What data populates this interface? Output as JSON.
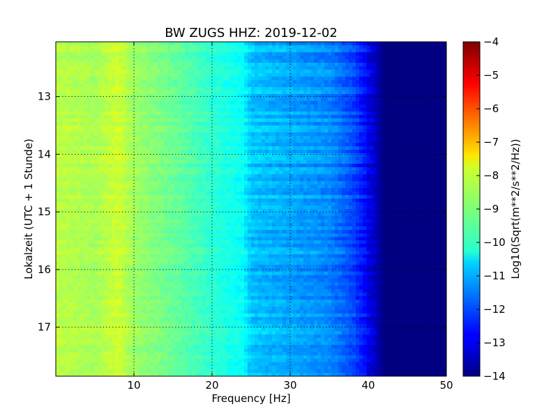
{
  "chart_data": {
    "type": "heatmap",
    "title": "BW ZUGS HHZ: 2019-12-02",
    "xlabel": "Frequency [Hz]",
    "ylabel": "Lokalzeit (UTC + 1 Stunde)",
    "xlim": [
      0,
      50
    ],
    "ylim": [
      12.05,
      17.85
    ],
    "x_ticks": [
      10,
      20,
      30,
      40,
      50
    ],
    "y_ticks": [
      13,
      14,
      15,
      16,
      17
    ],
    "grid": true,
    "colormap": "jet",
    "colorbar": {
      "label": "Log10(Sqrt(m**2/s**2/Hz))",
      "range": [
        -14,
        -4
      ],
      "ticks": [
        -4,
        -5,
        -6,
        -7,
        -8,
        -9,
        -10,
        -11,
        -12,
        -13,
        -14
      ]
    },
    "frequency_profile": {
      "frequency_hz": [
        0,
        5,
        8,
        10,
        15,
        20,
        24,
        25,
        30,
        35,
        38,
        40,
        42,
        50
      ],
      "value": [
        -8.4,
        -8.6,
        -8.2,
        -8.7,
        -9.2,
        -9.8,
        -10.2,
        -10.8,
        -11.1,
        -11.4,
        -12.0,
        -12.8,
        -14.0,
        -14.0
      ]
    }
  }
}
